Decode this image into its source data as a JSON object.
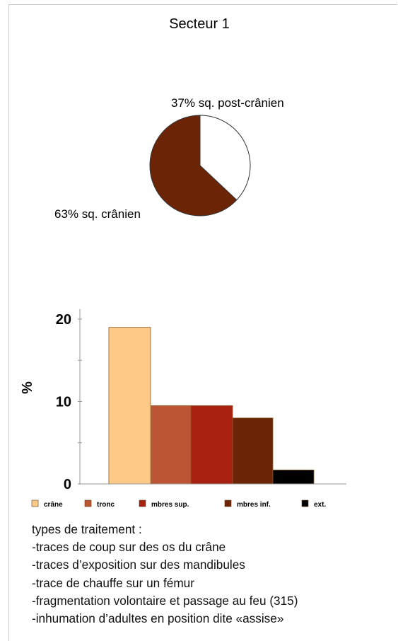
{
  "chart_data": [
    {
      "type": "pie",
      "title": "Secteur 1",
      "slices": [
        {
          "label": "37% sq. post-crânien",
          "value": 37,
          "color": "#ffffff"
        },
        {
          "label": "63% sq. crânien",
          "value": 63,
          "color": "#6b2506"
        }
      ]
    },
    {
      "type": "bar",
      "ylabel": "%",
      "ylim": [
        0,
        20
      ],
      "yticks": [
        "0",
        "10",
        "20"
      ],
      "categories": [
        "crâne",
        "tronc",
        "mbres sup.",
        "mbres inf.",
        "ext."
      ],
      "values": [
        19,
        9.5,
        9.5,
        8,
        1.7
      ],
      "colors": [
        "#fdc986",
        "#bb5533",
        "#a82010",
        "#6b2506",
        "#000000"
      ],
      "legend_position": "bottom"
    }
  ],
  "notes": {
    "heading": "types de traitement :",
    "items": [
      "-traces de coup sur des os du crâne",
      "-traces d’exposition sur des mandibules",
      "-trace de chauffe sur un fémur",
      "-fragmentation volontaire et passage au feu (315)",
      "-inhumation d’adultes en position dite «assise»"
    ]
  }
}
